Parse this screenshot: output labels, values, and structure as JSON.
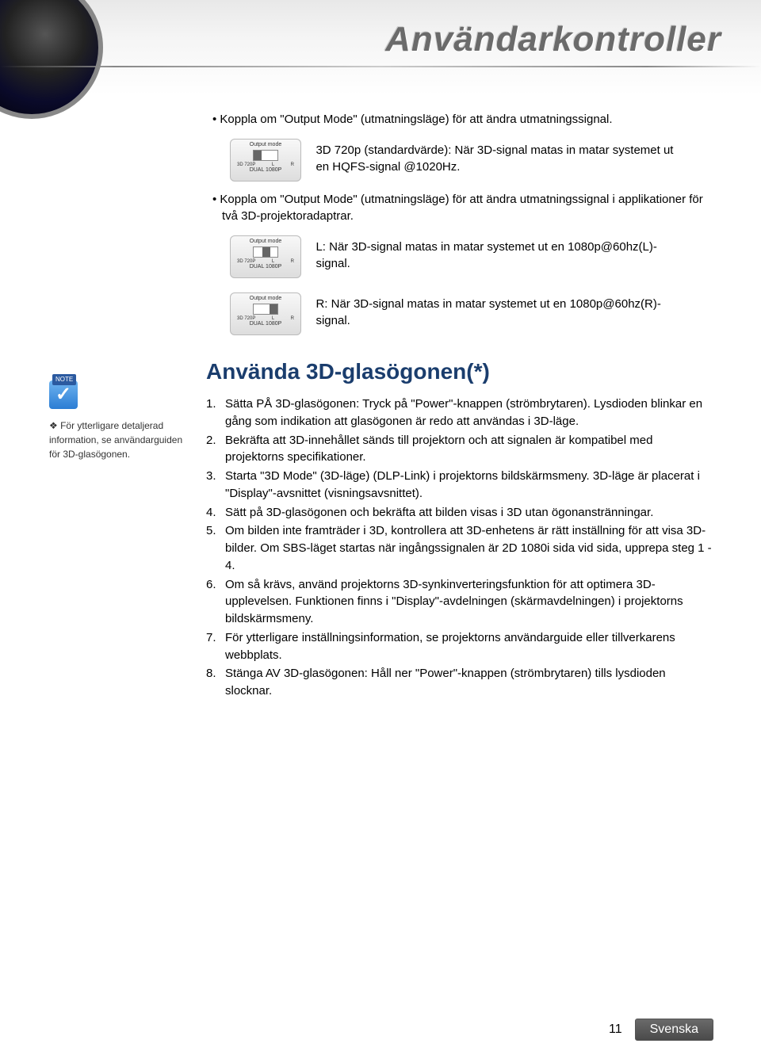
{
  "header": {
    "title": "Användarkontroller"
  },
  "section1": {
    "bullet1": "Koppla om \"Output Mode\" (utmatningsläge) för att ändra utmatningssignal.",
    "mode1_label": "Output mode",
    "mode1_left": "3D 720P",
    "mode1_bottom": "DUAL 1080P",
    "mode1_lr_l": "L",
    "mode1_lr_r": "R",
    "desc1": "3D 720p (standardvärde): När 3D-signal matas in matar systemet ut en HQFS-signal @1020Hz.",
    "bullet2": "Koppla om \"Output Mode\" (utmatningsläge) för att ändra utmatningssignal i applikationer för två 3D-projektoradaptrar.",
    "desc2": "L: När 3D-signal matas in matar systemet ut en 1080p@60hz(L)-signal.",
    "desc3": "R: När 3D-signal matas in matar systemet ut en 1080p@60hz(R)-signal."
  },
  "section2": {
    "title": "Använda 3D-glasögonen(*)",
    "items": [
      "Sätta PÅ 3D-glasögonen: Tryck på \"Power\"-knappen (strömbrytaren). Lysdioden blinkar en gång som indikation att glasögonen är redo att användas i 3D-läge.",
      "Bekräfta att 3D-innehållet sänds till projektorn och att signalen är kompatibel med projektorns specifikationer.",
      "Starta \"3D Mode\" (3D-läge) (DLP-Link) i projektorns bildskärmsmeny. 3D-läge är placerat i \"Display\"-avsnittet (visningsavsnittet).",
      "Sätt på 3D-glasögonen och bekräfta att bilden visas i 3D utan ögonanstränningar.",
      "Om bilden inte framträder i 3D, kontrollera att 3D-enhetens är rätt inställning för att visa 3D-bilder. Om SBS-läget startas när ingångssignalen är 2D 1080i sida vid sida, upprepa steg 1 - 4.",
      "Om så krävs, använd projektorns 3D-synkinverteringsfunktion för att optimera 3D-upplevelsen. Funktionen finns i \"Display\"-avdelningen (skärmavdelningen) i projektorns bildskärmsmeny.",
      "För ytterligare inställningsinformation, se projektorns användarguide eller tillverkarens webbplats.",
      "Stänga AV 3D-glasögonen: Håll ner \"Power\"-knappen (strömbrytaren) tills lysdioden slocknar."
    ]
  },
  "note": {
    "tab": "NOTE",
    "text": "För ytterligare detaljerad information, se användarguiden för 3D-glasögonen."
  },
  "footer": {
    "page": "11",
    "lang": "Svenska"
  },
  "colors": {
    "title": "#6b6b6b",
    "section_heading": "#1a3d6d",
    "note_badge": "#2b7dd4",
    "footer_badge": "#5a5a5a"
  }
}
